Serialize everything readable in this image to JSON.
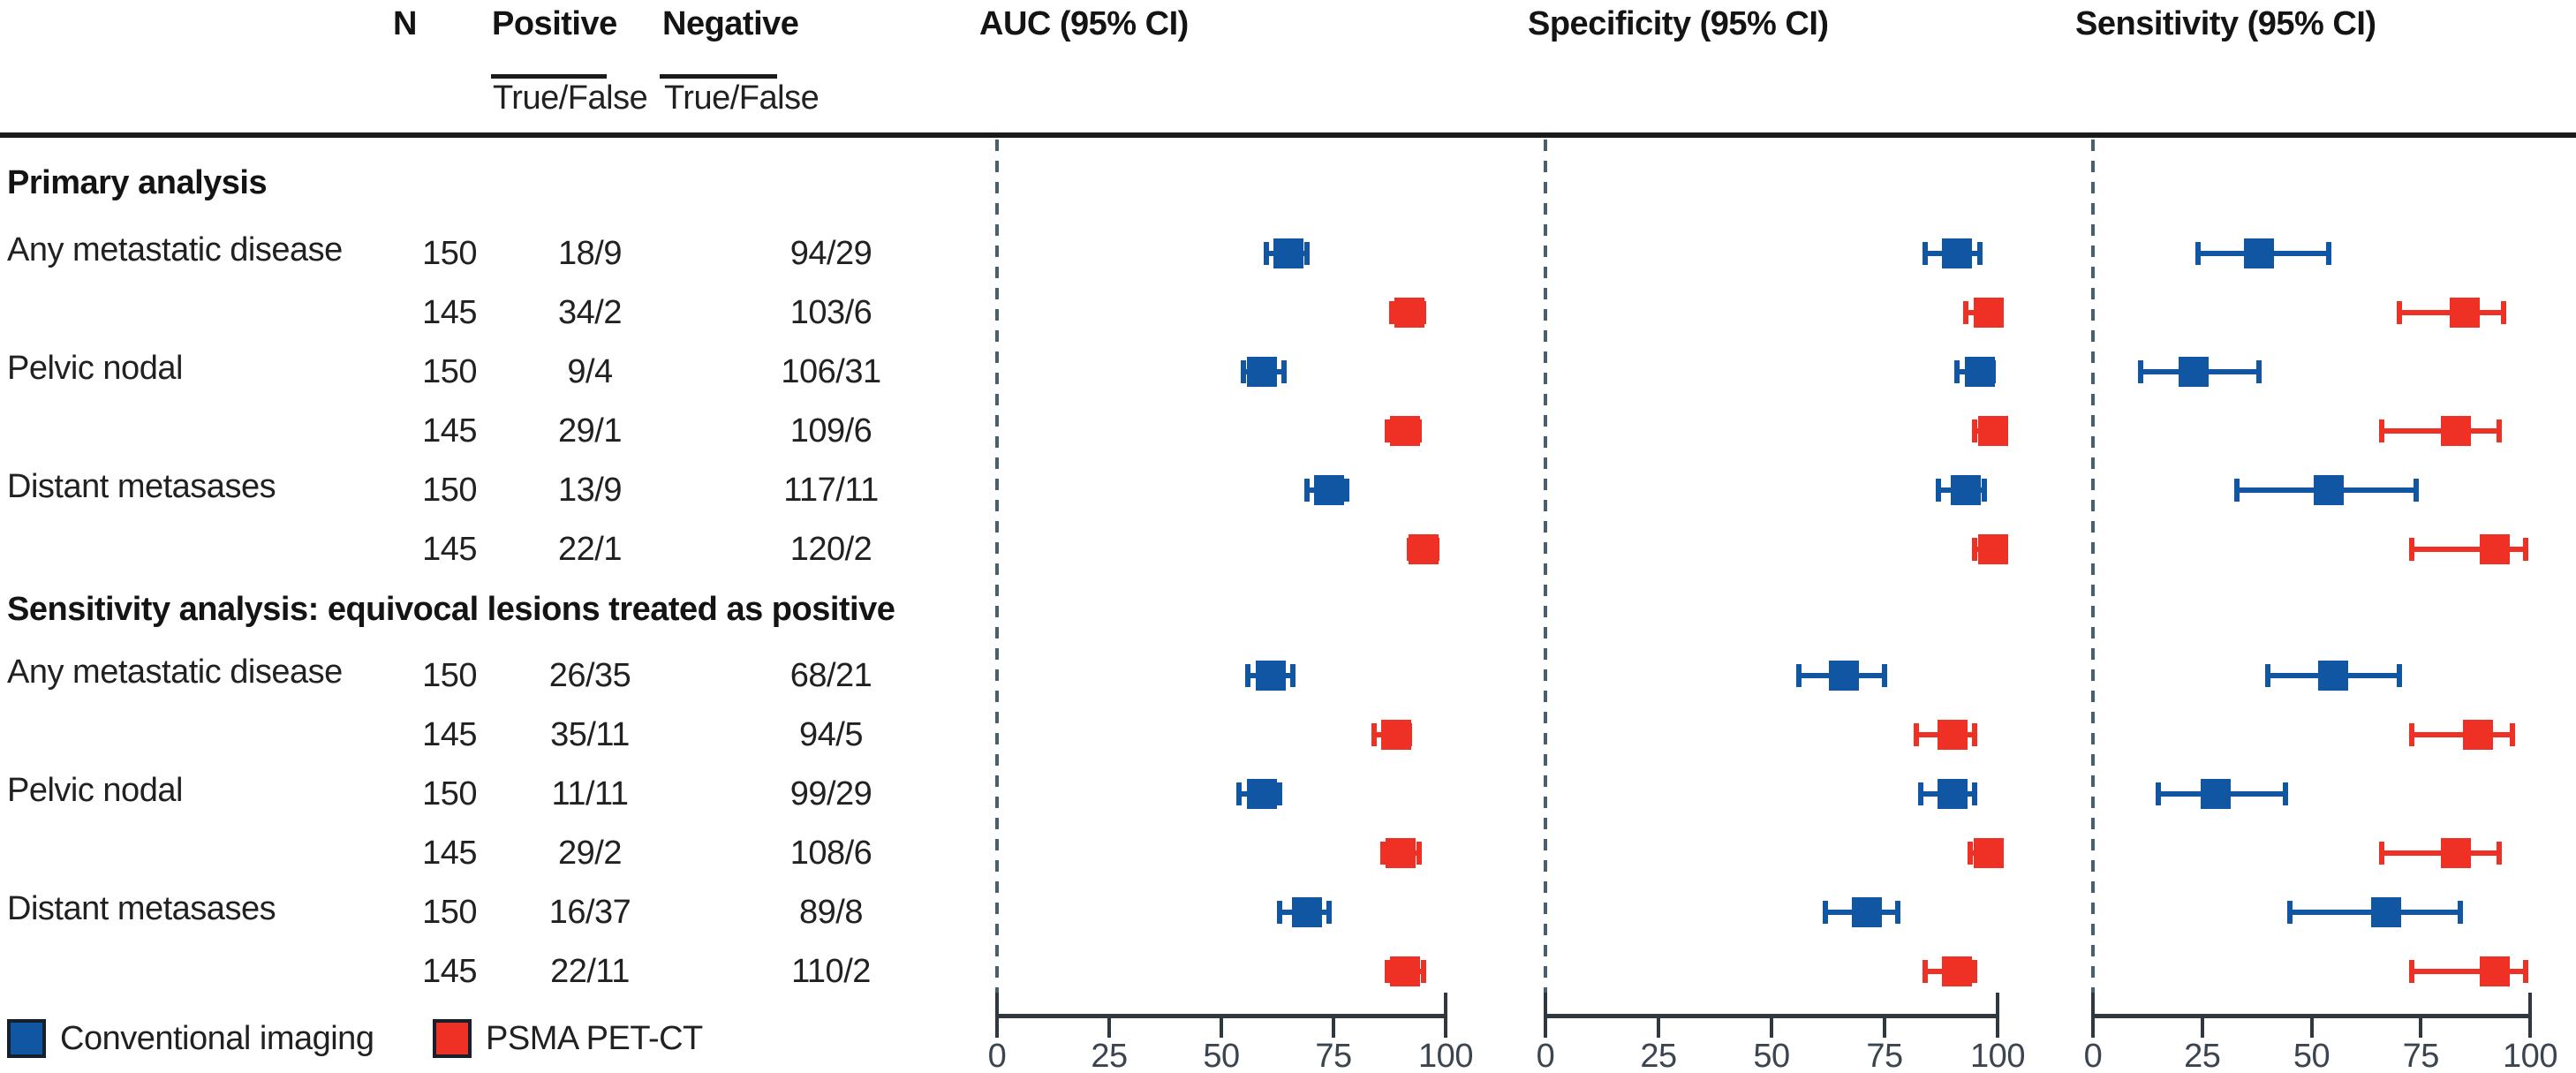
{
  "table_header": {
    "n": "N",
    "positive": "Positive",
    "negative": "Negative",
    "positive_sub": "True/False",
    "negative_sub": "True/False"
  },
  "panel_titles": [
    "AUC (95% CI)",
    "Specificity (95% CI)",
    "Sensitivity (95% CI)"
  ],
  "sections": [
    {
      "title": "Primary analysis"
    },
    {
      "title": "Sensitivity analysis: equivocal lesions treated as positive"
    }
  ],
  "legend": [
    {
      "label": "Conventional imaging",
      "color": "#1156a2"
    },
    {
      "label": "PSMA PET-CT",
      "color": "#ee3124"
    }
  ],
  "colors": {
    "conventional": "#1156a2",
    "psma": "#ee3124",
    "axis": "#30383f",
    "dashed_zero_line": "#46606e",
    "text": "#212121"
  },
  "chart_data": {
    "type": "scatter",
    "variant": "forest-plot-with-table",
    "panels": [
      "AUC (95% CI)",
      "Specificity (95% CI)",
      "Sensitivity (95% CI)"
    ],
    "x_axis": {
      "range": [
        0,
        100
      ],
      "ticks": [
        0,
        25,
        50,
        75,
        100
      ],
      "zero_reference_line": "dashed"
    },
    "groups": [
      "Conventional imaging",
      "PSMA PET-CT"
    ],
    "rows": [
      {
        "section": 0,
        "label": "Any metastatic disease",
        "group": 0,
        "n": "150",
        "positive": "18/9",
        "negative": "94/29",
        "auc": [
          65,
          60,
          69
        ],
        "specificity": [
          91,
          84,
          96
        ],
        "sensitivity": [
          38,
          24,
          54
        ]
      },
      {
        "section": 0,
        "label": "",
        "group": 1,
        "n": "145",
        "positive": "34/2",
        "negative": "103/6",
        "auc": [
          92,
          88,
          95
        ],
        "specificity": [
          98,
          93,
          100
        ],
        "sensitivity": [
          85,
          70,
          94
        ]
      },
      {
        "section": 0,
        "label": "Pelvic nodal",
        "group": 0,
        "n": "150",
        "positive": "9/4",
        "negative": "106/31",
        "auc": [
          59,
          55,
          64
        ],
        "specificity": [
          96,
          91,
          99
        ],
        "sensitivity": [
          23,
          11,
          38
        ]
      },
      {
        "section": 0,
        "label": "",
        "group": 1,
        "n": "145",
        "positive": "29/1",
        "negative": "109/6",
        "auc": [
          91,
          87,
          94
        ],
        "specificity": [
          99,
          95,
          100
        ],
        "sensitivity": [
          83,
          66,
          93
        ]
      },
      {
        "section": 0,
        "label": "Distant metasases",
        "group": 0,
        "n": "150",
        "positive": "13/9",
        "negative": "117/11",
        "auc": [
          74,
          69,
          78
        ],
        "specificity": [
          93,
          87,
          97
        ],
        "sensitivity": [
          54,
          33,
          74
        ]
      },
      {
        "section": 0,
        "label": "",
        "group": 1,
        "n": "145",
        "positive": "22/1",
        "negative": "120/2",
        "auc": [
          95,
          92,
          98
        ],
        "specificity": [
          99,
          95,
          100
        ],
        "sensitivity": [
          92,
          73,
          99
        ]
      },
      {
        "section": 1,
        "label": "Any metastatic disease",
        "group": 0,
        "n": "150",
        "positive": "26/35",
        "negative": "68/21",
        "auc": [
          61,
          56,
          66
        ],
        "specificity": [
          66,
          56,
          75
        ],
        "sensitivity": [
          55,
          40,
          70
        ]
      },
      {
        "section": 1,
        "label": "",
        "group": 1,
        "n": "145",
        "positive": "35/11",
        "negative": "94/5",
        "auc": [
          89,
          84,
          92
        ],
        "specificity": [
          90,
          82,
          95
        ],
        "sensitivity": [
          88,
          73,
          96
        ]
      },
      {
        "section": 1,
        "label": "Pelvic nodal",
        "group": 0,
        "n": "150",
        "positive": "11/11",
        "negative": "99/29",
        "auc": [
          59,
          54,
          63
        ],
        "specificity": [
          90,
          83,
          95
        ],
        "sensitivity": [
          28,
          15,
          44
        ]
      },
      {
        "section": 1,
        "label": "",
        "group": 1,
        "n": "145",
        "positive": "29/2",
        "negative": "108/6",
        "auc": [
          90,
          86,
          94
        ],
        "specificity": [
          98,
          94,
          100
        ],
        "sensitivity": [
          83,
          66,
          93
        ]
      },
      {
        "section": 1,
        "label": "Distant metasases",
        "group": 0,
        "n": "150",
        "positive": "16/37",
        "negative": "89/8",
        "auc": [
          69,
          63,
          74
        ],
        "specificity": [
          71,
          62,
          78
        ],
        "sensitivity": [
          67,
          45,
          84
        ]
      },
      {
        "section": 1,
        "label": "",
        "group": 1,
        "n": "145",
        "positive": "22/11",
        "negative": "110/2",
        "auc": [
          91,
          87,
          95
        ],
        "specificity": [
          91,
          84,
          95
        ],
        "sensitivity": [
          92,
          73,
          99
        ]
      }
    ]
  }
}
